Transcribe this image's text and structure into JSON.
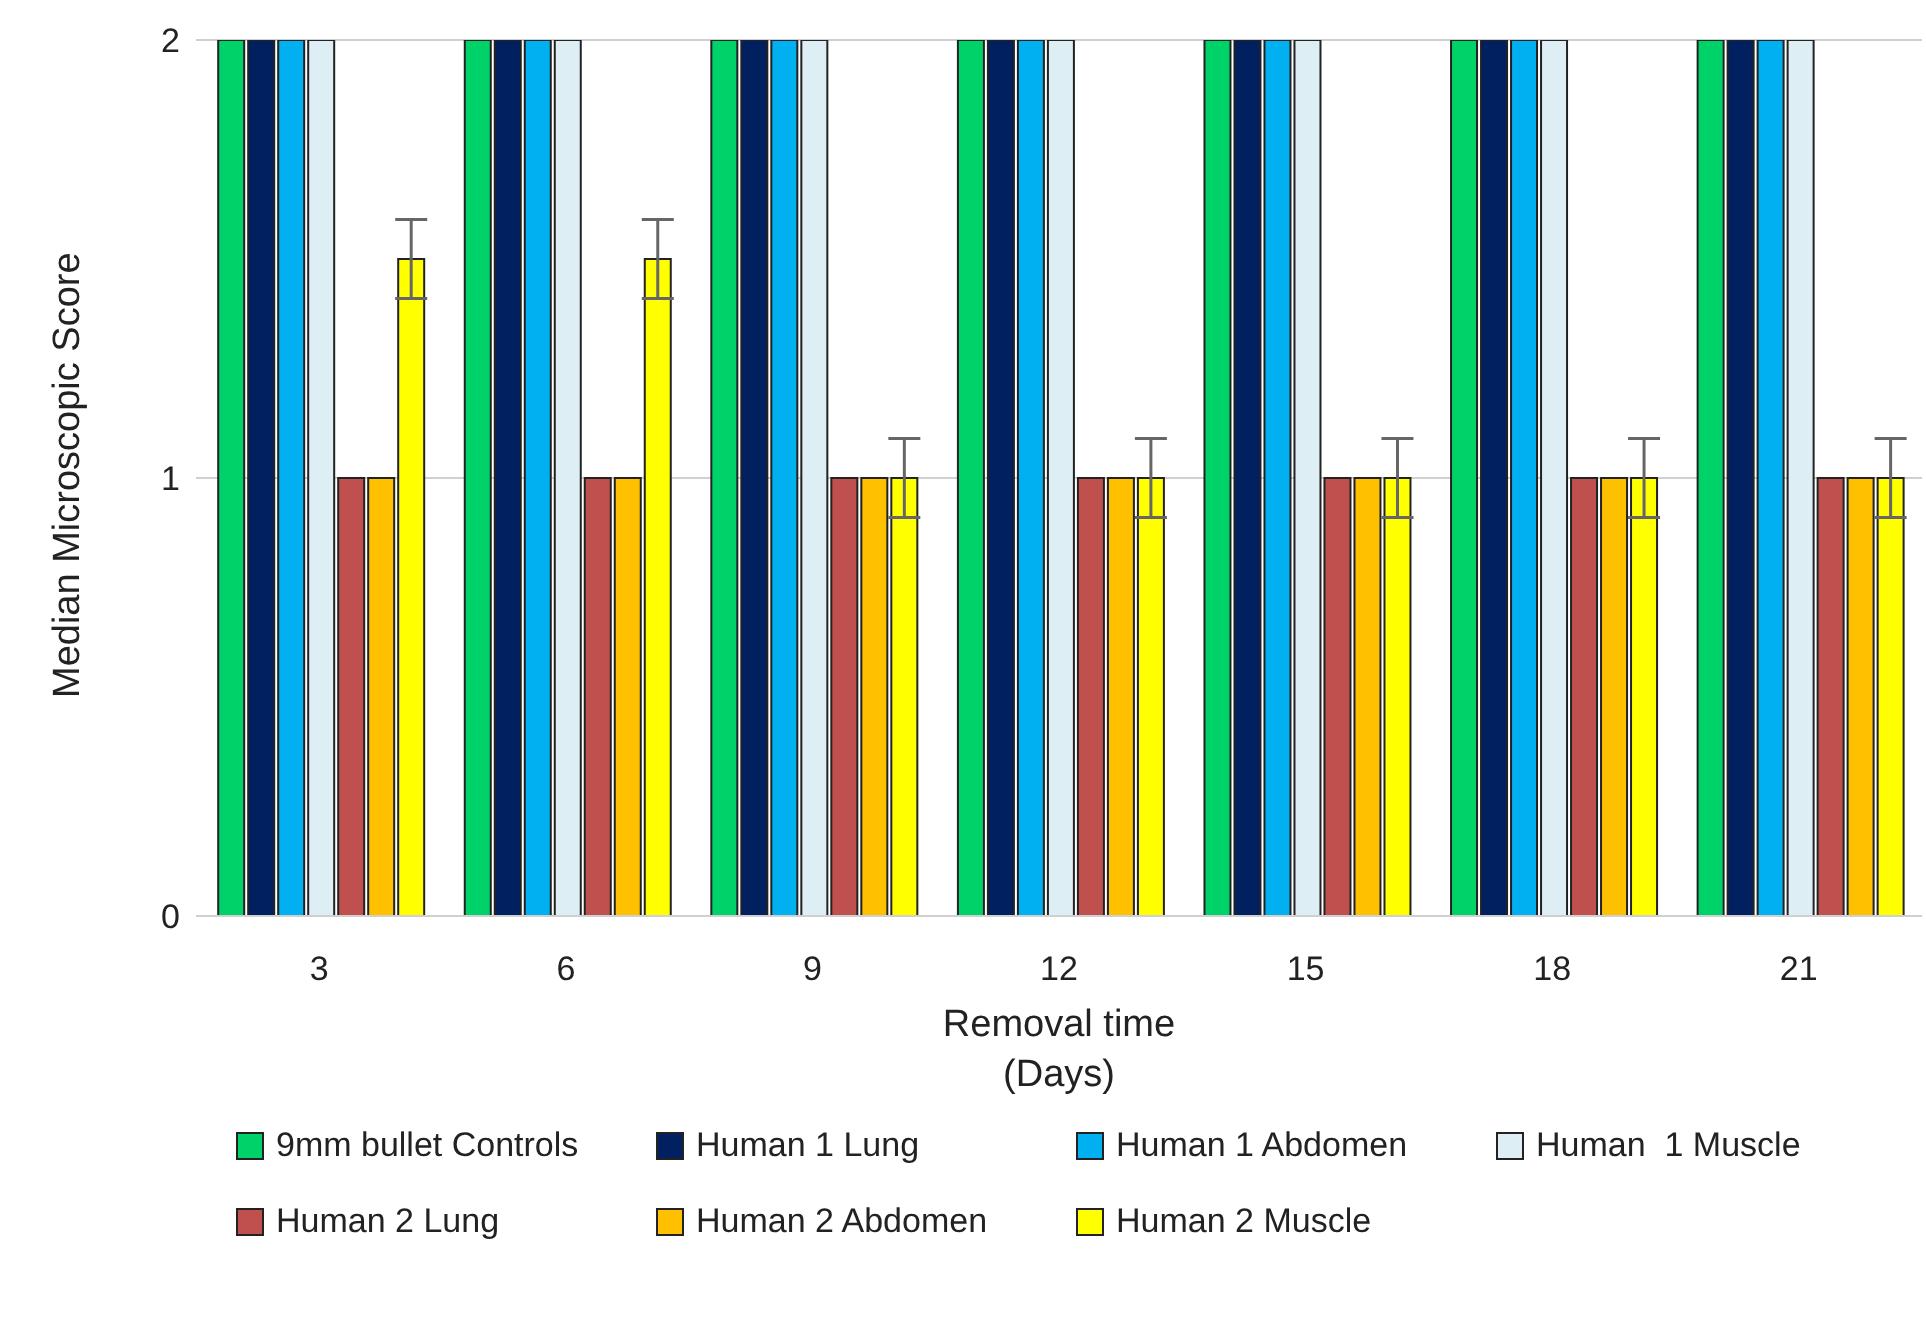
{
  "chart_data": {
    "type": "bar",
    "xlabel": "Removal time\n(Days)",
    "ylabel": "Median Microscopic Score",
    "categories": [
      "3",
      "6",
      "9",
      "12",
      "15",
      "18",
      "21"
    ],
    "series": [
      {
        "name": "9mm bullet Controls",
        "color": "#00d26a",
        "values": [
          2,
          2,
          2,
          2,
          2,
          2,
          2
        ]
      },
      {
        "name": "Human 1 Lung",
        "color": "#002060",
        "values": [
          2,
          2,
          2,
          2,
          2,
          2,
          2
        ]
      },
      {
        "name": "Human 1 Abdomen",
        "color": "#00b0f0",
        "values": [
          2,
          2,
          2,
          2,
          2,
          2,
          2
        ]
      },
      {
        "name": "Human  1 Muscle",
        "color": "#ddeef5",
        "values": [
          2,
          2,
          2,
          2,
          2,
          2,
          2
        ]
      },
      {
        "name": "Human 2 Lung",
        "color": "#c0504d",
        "values": [
          1,
          1,
          1,
          1,
          1,
          1,
          1
        ]
      },
      {
        "name": "Human 2 Abdomen",
        "color": "#ffc000",
        "values": [
          1,
          1,
          1,
          1,
          1,
          1,
          1
        ]
      },
      {
        "name": "Human 2 Muscle",
        "color": "#ffff00",
        "values": [
          1.5,
          1.5,
          1,
          1,
          1,
          1,
          1
        ],
        "errors": [
          0.09,
          0.09,
          0.09,
          0.09,
          0.09,
          0.09,
          0.09
        ]
      }
    ],
    "ylim": [
      0,
      2
    ],
    "yticks": [
      0,
      1,
      2
    ],
    "grid": "y",
    "legend": "bottom"
  }
}
